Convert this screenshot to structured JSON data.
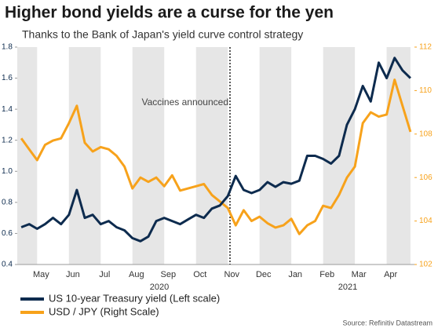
{
  "chart_data": {
    "type": "line",
    "title": "Higher bond yields are a curse for the yen",
    "subtitle": "Thanks to the Bank of Japan's yield curve control strategy",
    "categories": [
      null,
      null,
      null,
      "May",
      null,
      null,
      null,
      "Jun",
      null,
      null,
      null,
      "Jul",
      null,
      null,
      null,
      "Aug",
      null,
      null,
      null,
      "Sep",
      null,
      null,
      null,
      "Oct",
      null,
      null,
      null,
      "Nov",
      null,
      null,
      null,
      "Dec",
      null,
      null,
      null,
      "Jan",
      null,
      null,
      null,
      "Feb",
      null,
      null,
      null,
      "Mar",
      null,
      null,
      null,
      "Apr",
      null,
      null
    ],
    "year_labels": [
      "2020",
      "2021"
    ],
    "annotation": "Vaccines announced",
    "source": "Source: Refinitiv Datastream",
    "series": [
      {
        "name": "US 10-year Treasury yield (Left scale)",
        "color": "#0d2b4e",
        "values": [
          0.64,
          0.66,
          0.63,
          0.66,
          0.7,
          0.66,
          0.72,
          0.88,
          0.7,
          0.72,
          0.66,
          0.68,
          0.64,
          0.62,
          0.57,
          0.55,
          0.58,
          0.68,
          0.7,
          0.68,
          0.66,
          0.69,
          0.72,
          0.7,
          0.76,
          0.78,
          0.84,
          0.97,
          0.88,
          0.86,
          0.88,
          0.93,
          0.9,
          0.93,
          0.92,
          0.94,
          1.1,
          1.1,
          1.08,
          1.05,
          1.1,
          1.3,
          1.4,
          1.55,
          1.45,
          1.7,
          1.6,
          1.73,
          1.65,
          1.6
        ]
      },
      {
        "name": "USD / JPY (Right Scale)",
        "color": "#f7a21b",
        "axis": "y2",
        "values": [
          107.8,
          107.3,
          106.8,
          107.5,
          107.7,
          107.8,
          108.5,
          109.3,
          107.6,
          107.2,
          107.4,
          107.3,
          107.0,
          106.5,
          105.5,
          106.0,
          105.8,
          106.0,
          105.6,
          106.1,
          105.4,
          105.5,
          105.6,
          105.7,
          105.2,
          104.9,
          104.6,
          103.8,
          104.5,
          104.0,
          104.2,
          103.9,
          103.7,
          103.8,
          104.1,
          103.4,
          103.8,
          104.0,
          104.7,
          104.6,
          105.2,
          106.0,
          106.5,
          108.5,
          109.0,
          108.8,
          108.9,
          110.5,
          109.3,
          108.1
        ]
      }
    ],
    "ylim": [
      0.4,
      1.8
    ],
    "yticks": [
      0.4,
      0.6,
      0.8,
      {
        "value": 1,
        "label": "1.0"
      },
      1.2,
      1.4,
      1.6,
      1.8
    ],
    "y2lim": [
      102,
      112
    ],
    "y2ticks": [
      102,
      104,
      106,
      108,
      110,
      112
    ],
    "grid": false
  }
}
